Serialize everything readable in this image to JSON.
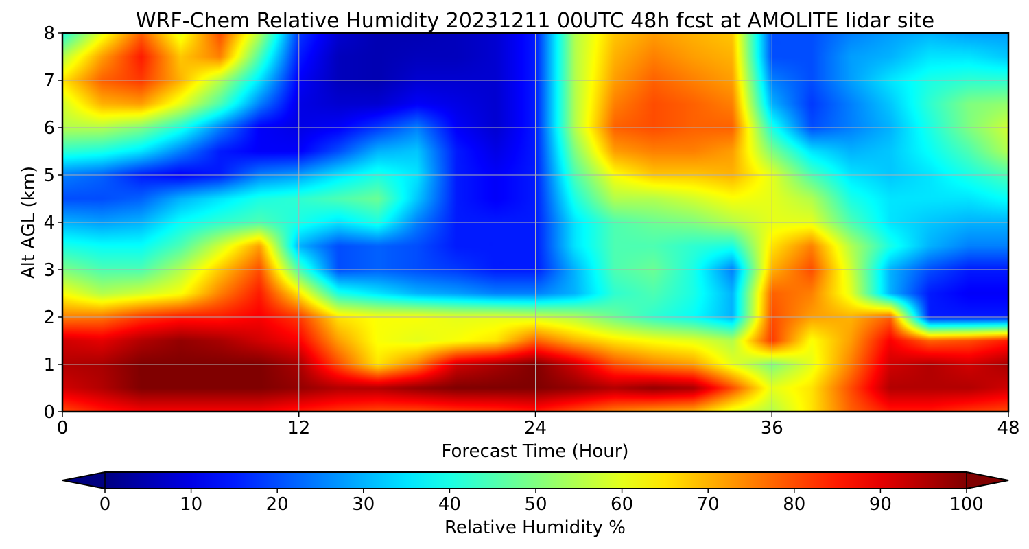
{
  "chart_data": {
    "type": "heatmap",
    "title": "WRF-Chem Relative Humidity 20231211 00UTC 48h fcst at AMOLITE lidar site",
    "xlabel": "Forecast Time (Hour)",
    "ylabel": "Alt AGL (km)",
    "xlim": [
      0,
      48
    ],
    "ylim": [
      0,
      8
    ],
    "xticks": [
      0,
      12,
      24,
      36,
      48
    ],
    "yticks": [
      0,
      1,
      2,
      3,
      4,
      5,
      6,
      7,
      8
    ],
    "grid": true,
    "colormap": "jet",
    "colorbar": {
      "label": "Relative Humidity %",
      "range": [
        0,
        100
      ],
      "ticks": [
        0,
        10,
        20,
        30,
        40,
        50,
        60,
        70,
        80,
        90,
        100
      ],
      "extend": "both",
      "orientation": "horizontal"
    },
    "x": [
      0,
      2,
      4,
      6,
      8,
      10,
      12,
      14,
      16,
      18,
      20,
      22,
      24,
      26,
      28,
      30,
      32,
      34,
      36,
      38,
      40,
      42,
      44,
      46,
      48
    ],
    "y": [
      0,
      0.5,
      1,
      1.5,
      2,
      2.5,
      3,
      3.5,
      4,
      4.5,
      5,
      5.5,
      6,
      6.5,
      7,
      7.5,
      8
    ],
    "z": [
      [
        80,
        85,
        88,
        88,
        88,
        88,
        85,
        82,
        80,
        80,
        82,
        83,
        85,
        80,
        75,
        72,
        70,
        60,
        55,
        65,
        78,
        85,
        85,
        82,
        80
      ],
      [
        92,
        95,
        100,
        100,
        100,
        100,
        98,
        95,
        95,
        98,
        100,
        100,
        100,
        98,
        95,
        98,
        96,
        80,
        60,
        65,
        80,
        95,
        95,
        95,
        92
      ],
      [
        95,
        96,
        100,
        100,
        100,
        100,
        96,
        80,
        65,
        75,
        92,
        96,
        100,
        92,
        80,
        75,
        72,
        60,
        50,
        60,
        75,
        92,
        95,
        92,
        96
      ],
      [
        92,
        90,
        95,
        98,
        96,
        92,
        88,
        72,
        62,
        60,
        62,
        65,
        78,
        70,
        65,
        62,
        60,
        55,
        82,
        62,
        72,
        88,
        78,
        80,
        85
      ],
      [
        75,
        76,
        82,
        85,
        85,
        88,
        82,
        65,
        62,
        62,
        60,
        60,
        58,
        55,
        48,
        42,
        38,
        30,
        80,
        72,
        70,
        78,
        15,
        15,
        15
      ],
      [
        62,
        55,
        58,
        62,
        75,
        85,
        65,
        40,
        35,
        30,
        28,
        25,
        25,
        30,
        42,
        45,
        40,
        30,
        78,
        75,
        60,
        30,
        15,
        12,
        12
      ],
      [
        50,
        45,
        45,
        55,
        68,
        80,
        45,
        20,
        22,
        20,
        18,
        15,
        15,
        30,
        45,
        48,
        40,
        25,
        70,
        80,
        58,
        30,
        20,
        15,
        15
      ],
      [
        40,
        38,
        38,
        45,
        58,
        72,
        30,
        20,
        22,
        20,
        15,
        15,
        15,
        35,
        45,
        45,
        42,
        40,
        65,
        75,
        55,
        40,
        30,
        25,
        25
      ],
      [
        30,
        28,
        30,
        38,
        42,
        45,
        40,
        35,
        40,
        25,
        15,
        15,
        15,
        35,
        45,
        48,
        50,
        55,
        60,
        60,
        45,
        35,
        32,
        30,
        30
      ],
      [
        20,
        20,
        22,
        30,
        35,
        40,
        42,
        45,
        48,
        32,
        15,
        12,
        15,
        40,
        55,
        55,
        58,
        62,
        60,
        55,
        40,
        35,
        35,
        35,
        38
      ],
      [
        25,
        22,
        15,
        12,
        15,
        25,
        28,
        35,
        40,
        35,
        15,
        12,
        15,
        45,
        62,
        68,
        68,
        70,
        60,
        45,
        35,
        32,
        35,
        40,
        45
      ],
      [
        42,
        40,
        35,
        25,
        15,
        12,
        12,
        20,
        30,
        32,
        15,
        10,
        15,
        50,
        72,
        75,
        75,
        72,
        50,
        35,
        30,
        32,
        38,
        45,
        55
      ],
      [
        55,
        55,
        50,
        40,
        25,
        12,
        10,
        12,
        18,
        25,
        12,
        8,
        15,
        55,
        78,
        80,
        78,
        78,
        40,
        20,
        25,
        30,
        40,
        50,
        58
      ],
      [
        58,
        70,
        72,
        60,
        45,
        25,
        10,
        8,
        8,
        12,
        10,
        8,
        15,
        55,
        75,
        80,
        78,
        75,
        30,
        18,
        25,
        32,
        42,
        50,
        52
      ],
      [
        65,
        78,
        82,
        70,
        55,
        35,
        12,
        6,
        5,
        8,
        8,
        8,
        15,
        55,
        72,
        78,
        75,
        72,
        25,
        20,
        28,
        35,
        40,
        42,
        42
      ],
      [
        55,
        72,
        85,
        68,
        75,
        45,
        15,
        6,
        5,
        6,
        6,
        8,
        15,
        55,
        70,
        75,
        72,
        70,
        20,
        20,
        28,
        30,
        35,
        35,
        32
      ],
      [
        40,
        60,
        78,
        60,
        80,
        55,
        18,
        8,
        5,
        5,
        6,
        8,
        15,
        55,
        68,
        72,
        70,
        68,
        20,
        20,
        25,
        28,
        30,
        28,
        28
      ]
    ]
  }
}
